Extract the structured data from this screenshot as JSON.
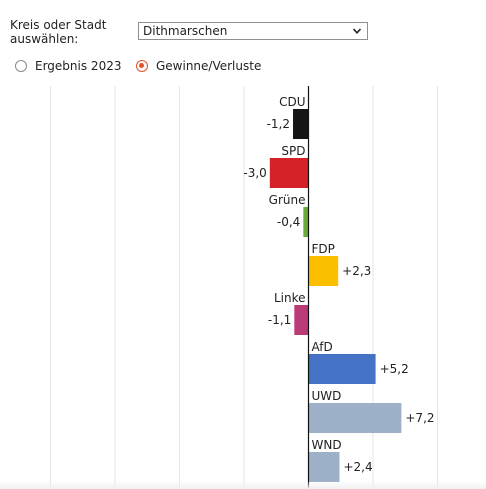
{
  "selector": {
    "label": "Kreis oder Stadt auswählen:",
    "value": "Dithmarschen",
    "icon": "chevron-down-icon"
  },
  "mode": {
    "options": [
      {
        "label": "Ergebnis 2023",
        "checked": false
      },
      {
        "label": "Gewinne/Verluste",
        "checked": true
      }
    ]
  },
  "chart_data": {
    "type": "bar",
    "orientation": "horizontal",
    "categories": [
      "CDU",
      "SPD",
      "Grüne",
      "FDP",
      "Linke",
      "AfD",
      "UWD",
      "WND"
    ],
    "values": [
      -1.2,
      -3.0,
      -0.4,
      2.3,
      -1.1,
      5.2,
      7.2,
      2.4
    ],
    "value_labels": [
      "-1,2",
      "-3,0",
      "-0,4",
      "+2,3",
      "-1,1",
      "+5,2",
      "+7,2",
      "+2,4"
    ],
    "colors": [
      "#151515",
      "#d52226",
      "#6aab39",
      "#fbbf00",
      "#bb3a78",
      "#4472c4",
      "#9cb0c7",
      "#9cb0c7"
    ],
    "grid": true
  }
}
